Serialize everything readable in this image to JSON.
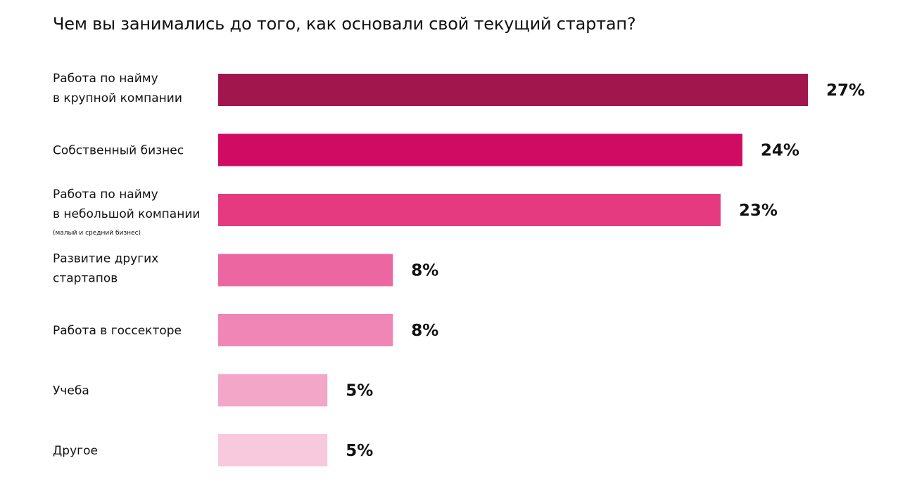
{
  "chart_data": {
    "type": "bar",
    "orientation": "horizontal",
    "title": "Чем вы занимались до того, как основали свой текущий стартап?",
    "unit": "%",
    "xlim": [
      0,
      27
    ],
    "grid": false,
    "legend": "none",
    "categories": [
      {
        "label_lines": [
          "Работа по найму",
          "в крупной компании"
        ],
        "note": "",
        "value": 27,
        "value_label": "27%",
        "color": "#A1174D"
      },
      {
        "label_lines": [
          "Собственный бизнес"
        ],
        "note": "",
        "value": 24,
        "value_label": "24%",
        "color": "#D00B63"
      },
      {
        "label_lines": [
          "Работа по найму",
          "в небольшой компании"
        ],
        "note": "(малый и средний бизнес)",
        "value": 23,
        "value_label": "23%",
        "color": "#E63A80"
      },
      {
        "label_lines": [
          "Развитие других",
          "стартапов"
        ],
        "note": "",
        "value": 8,
        "value_label": "8%",
        "color": "#EC67A2"
      },
      {
        "label_lines": [
          "Работа в госсекторе"
        ],
        "note": "",
        "value": 8,
        "value_label": "8%",
        "color": "#EF86B5"
      },
      {
        "label_lines": [
          "Учеба"
        ],
        "note": "",
        "value": 5,
        "value_label": "5%",
        "color": "#F3A6C8"
      },
      {
        "label_lines": [
          "Другое"
        ],
        "note": "",
        "value": 5,
        "value_label": "5%",
        "color": "#F8C9DD"
      }
    ]
  }
}
